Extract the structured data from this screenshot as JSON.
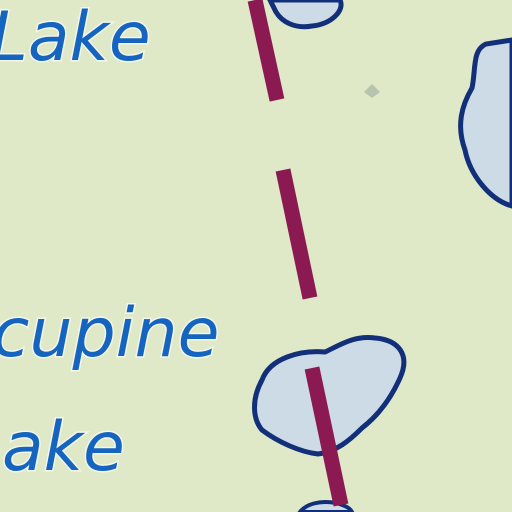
{
  "map": {
    "labels": {
      "lake_top": "Lake",
      "porcupine_line1": "cupine",
      "porcupine_line2": "ake"
    },
    "colors": {
      "land": "#dfe8c7",
      "water": "#cddbe7",
      "shoreline": "#12307a",
      "shore_halo": "#f3f6ea",
      "route": "#8b1a52",
      "label": "#1565c0"
    },
    "features": {
      "route": "dashed-trail",
      "lakes": [
        "top-small-lake",
        "right-lake",
        "porcupine-lake-pond"
      ]
    }
  }
}
